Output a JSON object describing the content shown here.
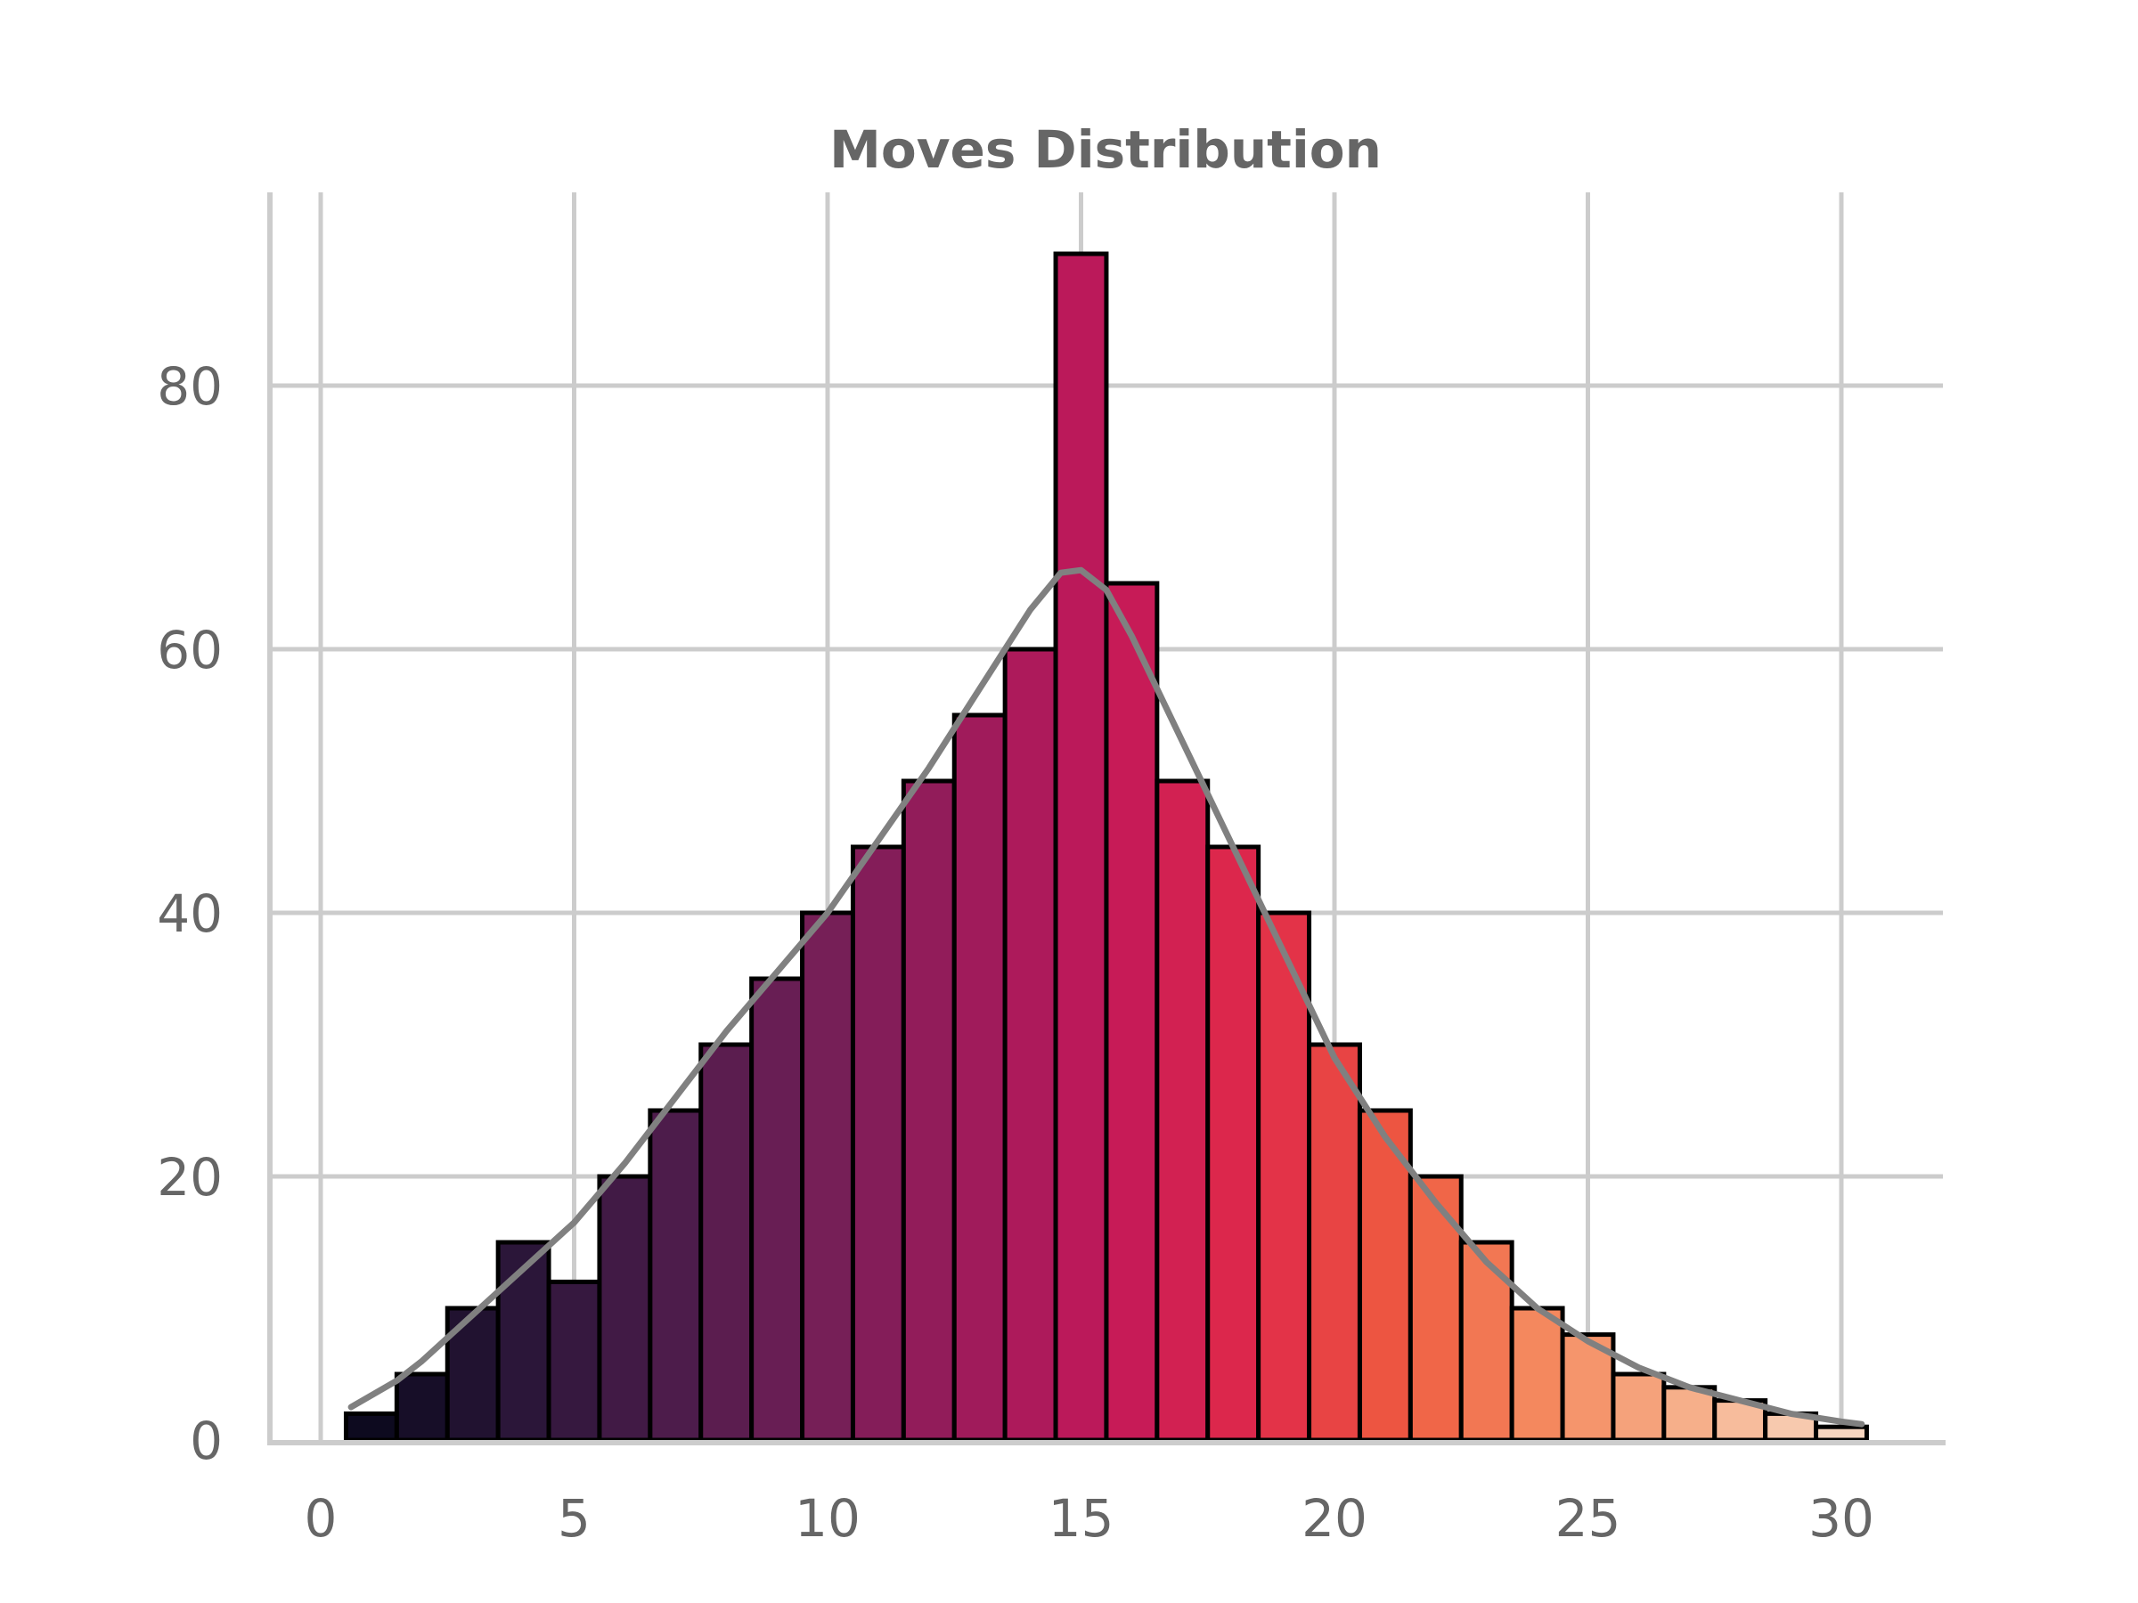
{
  "chart_data": {
    "type": "bar",
    "title": "Moves Distribution",
    "xlabel": "",
    "ylabel": "",
    "xlim": [
      -1,
      32
    ],
    "ylim": [
      0,
      95
    ],
    "grid": true,
    "x": [
      1,
      2,
      3,
      4,
      5,
      6,
      7,
      8,
      9,
      10,
      11,
      12,
      13,
      14,
      15,
      16,
      17,
      18,
      19,
      20,
      21,
      22,
      23,
      24,
      25,
      26,
      27,
      28,
      29,
      30
    ],
    "values": [
      2,
      5,
      10,
      15,
      12,
      20,
      25,
      30,
      35,
      40,
      45,
      50,
      55,
      60,
      90,
      65,
      50,
      45,
      40,
      30,
      25,
      20,
      15,
      10,
      8,
      5,
      4,
      3,
      2,
      1
    ],
    "bin_width": 1,
    "xticks": [
      0,
      5,
      10,
      15,
      20,
      25,
      30
    ],
    "xtick_labels": [
      "0",
      "5",
      "10",
      "15",
      "20",
      "25",
      "30"
    ],
    "yticks": [
      0,
      20,
      40,
      60,
      80
    ],
    "ytick_labels": [
      "0",
      "20",
      "40",
      "60",
      "80"
    ],
    "palette_stops": [
      "#0d0a1f",
      "#2a1638",
      "#4a1c4a",
      "#721f57",
      "#9a1b5b",
      "#c2185a",
      "#e0294a",
      "#ef5a40",
      "#f48b60",
      "#f6b08c",
      "#f8d6c0"
    ],
    "kde": {
      "color": "#808080",
      "x": [
        0.6,
        1.5,
        2,
        3,
        4,
        5,
        6,
        7,
        8,
        9,
        10,
        11,
        12,
        13,
        14,
        14.6,
        15,
        15.5,
        16,
        17,
        18,
        19,
        20,
        21,
        22,
        23,
        24,
        25,
        26,
        27,
        28,
        29,
        30,
        30.4
      ],
      "y": [
        2.5,
        4.5,
        6,
        9.5,
        13,
        16.5,
        21,
        26,
        31,
        35.5,
        40,
        45.5,
        51,
        57,
        63,
        65.8,
        66,
        64.5,
        61,
        53,
        45,
        37,
        29,
        23,
        18,
        13.5,
        10,
        7.5,
        5.5,
        4,
        3,
        2,
        1.4,
        1.2
      ]
    }
  }
}
